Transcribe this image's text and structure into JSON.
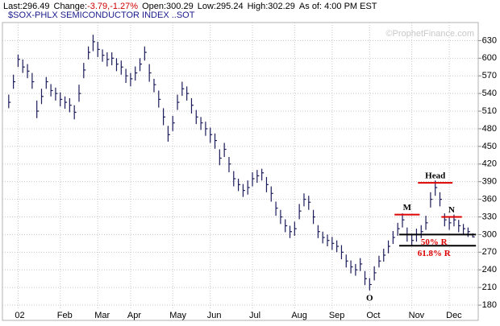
{
  "chart_data": {
    "type": "ohlc",
    "header": [
      {
        "text": "Last:296.49",
        "color": "#000000"
      },
      {
        "text": "Change:",
        "color": "#000000"
      },
      {
        "text": "-3.79,-1.27%",
        "color": "#cc0000"
      },
      {
        "text": "Open:300.29",
        "color": "#000000"
      },
      {
        "text": "Low:295.24",
        "color": "#000000"
      },
      {
        "text": "High:302.29",
        "color": "#000000"
      },
      {
        "text": "As of: 4:00 PM EST",
        "color": "#000000"
      }
    ],
    "title": "$SOX-PHLX SEMICONDUCTOR INDEX ..SOT",
    "watermark": "©ProphetFinance.com",
    "color": "#1c1c5c",
    "grid": true,
    "xlim": [
      -1,
      100
    ],
    "ylim": [
      165,
      647
    ],
    "yticks": [
      180,
      210,
      240,
      270,
      300,
      330,
      360,
      390,
      420,
      450,
      480,
      510,
      540,
      570,
      600,
      630
    ],
    "xticks": [
      {
        "value": 2,
        "label": "02"
      },
      {
        "value": 11,
        "label": "Feb"
      },
      {
        "value": 19,
        "label": "Mar"
      },
      {
        "value": 26,
        "label": "Apr"
      },
      {
        "value": 35,
        "label": "May"
      },
      {
        "value": 43,
        "label": "Jun"
      },
      {
        "value": 52,
        "label": "Jul"
      },
      {
        "value": 61,
        "label": "Aug"
      },
      {
        "value": 69,
        "label": "Sep"
      },
      {
        "value": 77,
        "label": "Oct"
      },
      {
        "value": 86,
        "label": "Nov"
      },
      {
        "value": 94,
        "label": "Dec"
      }
    ],
    "high": [
      538,
      572,
      606,
      598,
      590,
      575,
      528,
      548,
      568,
      556,
      550,
      542,
      535,
      532,
      520,
      555,
      592,
      620,
      640,
      628,
      615,
      610,
      610,
      600,
      596,
      582,
      575,
      586,
      600,
      620,
      590,
      565,
      545,
      515,
      485,
      502,
      538,
      560,
      552,
      532,
      512,
      500,
      492,
      482,
      472,
      445,
      456,
      432,
      408,
      395,
      386,
      392,
      406,
      410,
      412,
      398,
      382,
      356,
      342,
      326,
      315,
      322,
      352,
      370,
      366,
      342,
      316,
      305,
      300,
      296,
      290,
      282,
      266,
      256,
      250,
      260,
      238,
      226,
      246,
      264,
      276,
      290,
      306,
      320,
      336,
      312,
      300,
      310,
      316,
      332,
      372,
      392,
      372,
      336,
      330,
      334,
      325,
      318,
      312,
      302
    ],
    "low": [
      515,
      548,
      585,
      575,
      566,
      548,
      498,
      522,
      548,
      535,
      528,
      518,
      514,
      508,
      496,
      526,
      566,
      598,
      612,
      602,
      594,
      586,
      588,
      578,
      572,
      558,
      552,
      562,
      578,
      596,
      560,
      542,
      516,
      486,
      458,
      476,
      512,
      536,
      528,
      506,
      488,
      478,
      468,
      456,
      446,
      418,
      432,
      406,
      382,
      374,
      364,
      368,
      382,
      388,
      392,
      372,
      356,
      332,
      318,
      304,
      294,
      298,
      326,
      348,
      342,
      318,
      294,
      285,
      280,
      274,
      270,
      258,
      244,
      234,
      230,
      238,
      214,
      205,
      222,
      244,
      254,
      268,
      284,
      298,
      312,
      288,
      280,
      288,
      294,
      308,
      346,
      366,
      348,
      314,
      308,
      314,
      304,
      300,
      296,
      295
    ],
    "close": [
      525,
      560,
      598,
      585,
      578,
      560,
      510,
      535,
      560,
      545,
      540,
      530,
      525,
      520,
      508,
      540,
      580,
      610,
      628,
      615,
      605,
      598,
      600,
      590,
      585,
      570,
      565,
      575,
      590,
      610,
      575,
      555,
      530,
      500,
      470,
      490,
      525,
      548,
      540,
      520,
      500,
      490,
      480,
      470,
      460,
      430,
      445,
      420,
      395,
      385,
      375,
      380,
      395,
      400,
      405,
      385,
      370,
      345,
      330,
      315,
      305,
      310,
      340,
      360,
      355,
      330,
      305,
      295,
      290,
      285,
      280,
      270,
      255,
      245,
      240,
      250,
      225,
      215,
      235,
      255,
      265,
      280,
      295,
      310,
      325,
      300,
      290,
      300,
      305,
      320,
      360,
      380,
      360,
      325,
      320,
      325,
      315,
      310,
      305,
      296
    ],
    "annotations": [
      {
        "label": "M",
        "level": 334,
        "from": 83,
        "to": 87,
        "color": "#dd0000",
        "text_color": "#000000",
        "position": "above"
      },
      {
        "label": "Head",
        "level": 388,
        "from": 88,
        "to": 94,
        "color": "#dd0000",
        "text_color": "#000000",
        "position": "above"
      },
      {
        "label": "N",
        "level": 330,
        "from": 93,
        "to": 96,
        "color": "#dd0000",
        "text_color": "#000000",
        "position": "above"
      },
      {
        "label": "O",
        "level": 205,
        "from": 77,
        "to": 77,
        "color": null,
        "text_color": "#000000",
        "position": "below"
      },
      {
        "label": "50% R",
        "level": 300,
        "from": 84,
        "to": 99,
        "color": "#000000",
        "text_color": "#dd0000",
        "position": "below"
      },
      {
        "label": "61.8% R",
        "level": 281,
        "from": 84,
        "to": 99,
        "color": "#000000",
        "text_color": "#dd0000",
        "position": "below"
      }
    ]
  }
}
